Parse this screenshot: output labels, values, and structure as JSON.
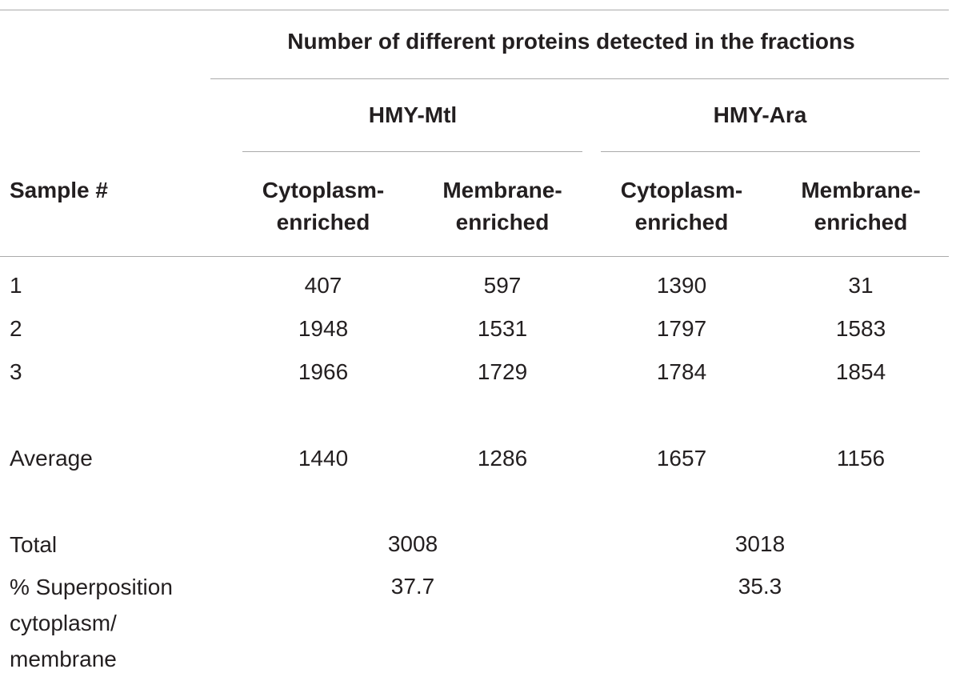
{
  "table": {
    "spanner": "Number of different proteins detected in the fractions",
    "groups": [
      "HMY-Mtl",
      "HMY-Ara"
    ],
    "row_header": "Sample #",
    "columns": [
      "Cytoplasm-enriched",
      "Membrane-enriched",
      "Cytoplasm-enriched",
      "Membrane-enriched"
    ],
    "rows": [
      [
        "1",
        407,
        597,
        1390,
        31
      ],
      [
        "2",
        1948,
        1531,
        1797,
        1583
      ],
      [
        "3",
        1966,
        1729,
        1784,
        1854
      ],
      [
        "Average",
        1440,
        1286,
        1657,
        1156
      ]
    ],
    "summary": [
      [
        "Total",
        3008,
        3018
      ],
      [
        "% Superposition cytoplasm/ membrane",
        37.7,
        35.3
      ]
    ]
  }
}
